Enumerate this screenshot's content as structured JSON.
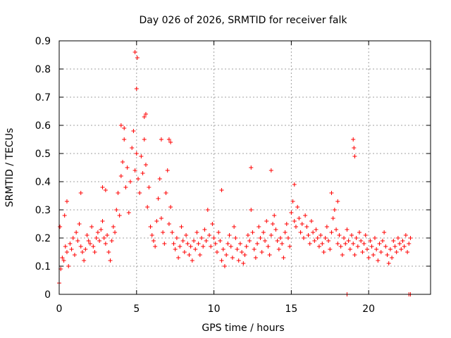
{
  "chart_data": {
    "type": "scatter",
    "title": "Day 026 of 2026, SRMTID for receiver falk",
    "xlabel": "GPS time / hours",
    "ylabel": "SRMTID / TECUs",
    "xlim": [
      0,
      24
    ],
    "ylim": [
      0,
      0.9
    ],
    "x_ticks": [
      0,
      5,
      10,
      15,
      20
    ],
    "x_tick_labels": [
      "0",
      "5",
      "10",
      "15",
      "20"
    ],
    "y_ticks": [
      0,
      0.1,
      0.2,
      0.3,
      0.4,
      0.5,
      0.6,
      0.7,
      0.8,
      0.9
    ],
    "y_tick_labels": [
      "0",
      "0.1",
      "0.2",
      "0.3",
      "0.4",
      "0.5",
      "0.6",
      "0.7",
      "0.8",
      "0.9"
    ],
    "grid": true,
    "marker": "+",
    "series": [
      {
        "name": "SRMTID",
        "color": "#ff0000",
        "x": [
          0.0,
          0.1,
          0.2,
          0.3,
          0.4,
          0.5,
          0.6,
          0.7,
          0.8,
          0.9,
          1.0,
          1.1,
          1.2,
          1.3,
          1.4,
          1.5,
          1.6,
          1.7,
          1.8,
          1.9,
          2.0,
          2.1,
          2.2,
          2.3,
          2.4,
          2.5,
          2.6,
          2.7,
          2.8,
          2.9,
          3.0,
          3.1,
          3.2,
          3.3,
          3.4,
          3.5,
          3.6,
          3.7,
          3.8,
          3.9,
          4.0,
          4.1,
          4.2,
          4.3,
          4.4,
          4.5,
          4.6,
          4.7,
          4.8,
          4.9,
          5.0,
          5.1,
          5.2,
          5.3,
          5.4,
          5.5,
          5.6,
          5.7,
          5.8,
          5.9,
          6.0,
          6.1,
          6.2,
          6.3,
          6.4,
          6.5,
          6.6,
          6.7,
          6.8,
          6.9,
          7.0,
          7.1,
          7.2,
          7.3,
          7.4,
          7.5,
          7.6,
          7.7,
          7.8,
          7.9,
          8.0,
          8.1,
          8.2,
          8.3,
          8.4,
          8.5,
          8.6,
          8.7,
          8.8,
          8.9,
          9.0,
          9.1,
          9.2,
          9.3,
          9.4,
          9.5,
          9.6,
          9.7,
          9.8,
          9.9,
          10.0,
          10.1,
          10.2,
          10.3,
          10.4,
          10.5,
          10.6,
          10.7,
          10.8,
          10.9,
          11.0,
          11.1,
          11.2,
          11.3,
          11.4,
          11.5,
          11.6,
          11.7,
          11.8,
          11.9,
          12.0,
          12.1,
          12.2,
          12.3,
          12.4,
          12.5,
          12.6,
          12.7,
          12.8,
          12.9,
          13.0,
          13.1,
          13.2,
          13.3,
          13.4,
          13.5,
          13.6,
          13.7,
          13.8,
          13.9,
          14.0,
          14.1,
          14.2,
          14.3,
          14.4,
          14.5,
          14.6,
          14.7,
          14.8,
          14.9,
          15.0,
          15.1,
          15.2,
          15.3,
          15.4,
          15.5,
          15.6,
          15.7,
          15.8,
          15.9,
          16.0,
          16.1,
          16.2,
          16.3,
          16.4,
          16.5,
          16.6,
          16.7,
          16.8,
          16.9,
          17.0,
          17.1,
          17.2,
          17.3,
          17.4,
          17.5,
          17.6,
          17.7,
          17.8,
          17.9,
          18.0,
          18.1,
          18.2,
          18.3,
          18.4,
          18.5,
          18.6,
          18.7,
          18.8,
          18.9,
          19.0,
          19.1,
          19.2,
          19.3,
          19.4,
          19.5,
          19.6,
          19.7,
          19.8,
          19.9,
          20.0,
          20.1,
          20.2,
          20.3,
          20.4,
          20.5,
          20.6,
          20.7,
          20.8,
          20.9,
          21.0,
          21.1,
          21.2,
          21.3,
          21.4,
          21.5,
          21.6,
          21.7,
          21.8,
          21.9,
          22.0,
          22.1,
          22.2,
          22.3,
          22.4,
          22.5,
          22.6,
          22.7,
          0.05,
          0.35,
          0.5,
          1.4,
          2.8,
          3.0,
          4.0,
          4.2,
          4.9,
          5.0,
          5.05,
          5.5,
          5.6,
          6.6,
          7.1,
          7.2,
          10.5,
          12.4,
          13.7,
          15.2,
          17.6,
          18.0,
          18.6,
          19.0,
          19.05,
          19.1,
          22.6,
          22.7
        ],
        "y": [
          0.04,
          0.09,
          0.13,
          0.12,
          0.17,
          0.15,
          0.1,
          0.18,
          0.16,
          0.2,
          0.14,
          0.22,
          0.19,
          0.25,
          0.17,
          0.15,
          0.12,
          0.16,
          0.21,
          0.19,
          0.18,
          0.24,
          0.17,
          0.15,
          0.2,
          0.22,
          0.19,
          0.23,
          0.26,
          0.2,
          0.18,
          0.21,
          0.15,
          0.12,
          0.19,
          0.24,
          0.22,
          0.3,
          0.36,
          0.28,
          0.42,
          0.47,
          0.55,
          0.38,
          0.45,
          0.29,
          0.4,
          0.52,
          0.58,
          0.44,
          0.5,
          0.41,
          0.36,
          0.49,
          0.43,
          0.55,
          0.46,
          0.31,
          0.38,
          0.24,
          0.21,
          0.19,
          0.17,
          0.26,
          0.34,
          0.41,
          0.27,
          0.22,
          0.18,
          0.36,
          0.44,
          0.25,
          0.31,
          0.22,
          0.18,
          0.16,
          0.2,
          0.13,
          0.17,
          0.24,
          0.19,
          0.15,
          0.21,
          0.18,
          0.14,
          0.17,
          0.12,
          0.19,
          0.16,
          0.22,
          0.18,
          0.14,
          0.2,
          0.17,
          0.23,
          0.19,
          0.3,
          0.21,
          0.17,
          0.25,
          0.2,
          0.18,
          0.15,
          0.22,
          0.19,
          0.12,
          0.16,
          0.1,
          0.14,
          0.18,
          0.21,
          0.17,
          0.13,
          0.24,
          0.2,
          0.16,
          0.12,
          0.18,
          0.15,
          0.11,
          0.14,
          0.17,
          0.21,
          0.19,
          0.3,
          0.22,
          0.16,
          0.13,
          0.18,
          0.24,
          0.2,
          0.15,
          0.22,
          0.19,
          0.26,
          0.17,
          0.14,
          0.21,
          0.25,
          0.28,
          0.23,
          0.19,
          0.16,
          0.2,
          0.18,
          0.13,
          0.22,
          0.25,
          0.2,
          0.17,
          0.29,
          0.33,
          0.26,
          0.24,
          0.31,
          0.27,
          0.22,
          0.25,
          0.2,
          0.28,
          0.24,
          0.21,
          0.18,
          0.26,
          0.22,
          0.19,
          0.23,
          0.2,
          0.17,
          0.21,
          0.18,
          0.15,
          0.2,
          0.24,
          0.19,
          0.16,
          0.22,
          0.27,
          0.3,
          0.23,
          0.18,
          0.21,
          0.17,
          0.14,
          0.2,
          0.18,
          0.23,
          0.19,
          0.16,
          0.21,
          0.18,
          0.14,
          0.2,
          0.17,
          0.22,
          0.19,
          0.15,
          0.18,
          0.21,
          0.16,
          0.13,
          0.19,
          0.17,
          0.14,
          0.2,
          0.16,
          0.12,
          0.18,
          0.15,
          0.19,
          0.22,
          0.17,
          0.14,
          0.11,
          0.16,
          0.13,
          0.19,
          0.17,
          0.15,
          0.2,
          0.18,
          0.16,
          0.19,
          0.17,
          0.21,
          0.15,
          0.18,
          0.2,
          0.24,
          0.28,
          0.33,
          0.36,
          0.38,
          0.37,
          0.6,
          0.59,
          0.86,
          0.73,
          0.84,
          0.63,
          0.64,
          0.55,
          0.55,
          0.54,
          0.37,
          0.45,
          0.44,
          0.39,
          0.36,
          0.33,
          0.0,
          0.55,
          0.52,
          0.49,
          0.0,
          0.0
        ]
      }
    ]
  }
}
